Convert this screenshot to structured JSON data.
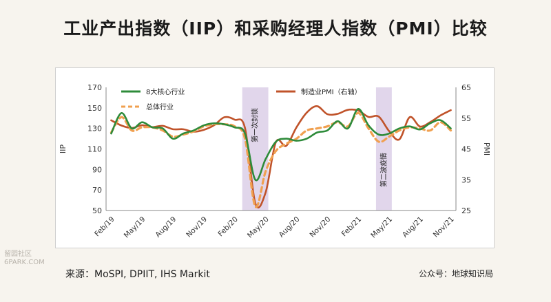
{
  "page": {
    "title": "工业产出指数（IIP）和采购经理人指数（PMI）比较",
    "source": "来源：MoSPI, DPIIT, IHS Markit",
    "account": "公众号：地球知识局",
    "watermark_line1": "留园社区",
    "watermark_line2": "6PARK.COM"
  },
  "colors": {
    "core": "#2e8b3a",
    "overall": "#f0a050",
    "pmi": "#c0532a",
    "band": "#d9cce6"
  },
  "chart_data": {
    "type": "line",
    "x": [
      "Feb/19",
      "Mar/19",
      "Apr/19",
      "May/19",
      "Jun/19",
      "Jul/19",
      "Aug/19",
      "Sep/19",
      "Oct/19",
      "Nov/19",
      "Dec/19",
      "Jan/20",
      "Feb/20",
      "Mar/20",
      "Apr/20",
      "May/20",
      "Jun/20",
      "Jul/20",
      "Aug/20",
      "Sep/20",
      "Oct/20",
      "Nov/20",
      "Dec/20",
      "Jan/21",
      "Feb/21",
      "Mar/21",
      "Apr/21",
      "May/21",
      "Jun/21",
      "Jul/21",
      "Aug/21",
      "Sep/21",
      "Oct/21",
      "Nov/21"
    ],
    "xticks": [
      "Feb/19",
      "May/19",
      "Aug/19",
      "Nov/19",
      "Feb/20",
      "May/20",
      "Aug/20",
      "Nov/20",
      "Feb/21",
      "May/21",
      "Aug/21",
      "Nov/21"
    ],
    "series": [
      {
        "name": "8大核心行业",
        "axis": "left",
        "style": "solid",
        "values": [
          125,
          145,
          130,
          136,
          131,
          130,
          120,
          125,
          128,
          133,
          135,
          134,
          131,
          125,
          80,
          100,
          117,
          120,
          118,
          120,
          126,
          128,
          137,
          130,
          149,
          133,
          124,
          125,
          130,
          132,
          129,
          135,
          138,
          130
        ]
      },
      {
        "name": "总体行业",
        "axis": "left",
        "style": "dashed",
        "values": [
          126,
          141,
          128,
          131,
          131,
          128,
          122,
          124,
          127,
          132,
          134,
          134,
          132,
          120,
          54,
          88,
          108,
          115,
          120,
          128,
          130,
          132,
          136,
          132,
          145,
          130,
          117,
          122,
          128,
          131,
          130,
          128,
          136,
          128
        ]
      },
      {
        "name": "制造业PMI（右轴）",
        "axis": "right",
        "style": "solid",
        "values": [
          54.3,
          52.6,
          51.8,
          52.7,
          52.1,
          52.5,
          51.4,
          51.4,
          50.6,
          51.2,
          52.7,
          55.3,
          54.5,
          51.8,
          27.4,
          30.8,
          47.2,
          46.0,
          52.0,
          56.8,
          58.9,
          56.3,
          56.4,
          57.7,
          57.5,
          55.4,
          55.5,
          50.8,
          48.1,
          55.3,
          52.3,
          53.7,
          55.9,
          57.6
        ]
      }
    ],
    "shaded_periods": [
      {
        "label": "第一次封锁",
        "start": "Mar/20",
        "end": "May/20"
      },
      {
        "label": "第二波疫情",
        "start": "Apr/21",
        "end": "May/21"
      }
    ],
    "ylabel": "IIP",
    "y2label": "PMI",
    "ylim": [
      50,
      170
    ],
    "y2lim": [
      25,
      65
    ],
    "yticks": [
      50,
      70,
      90,
      110,
      130,
      150,
      170
    ],
    "y2ticks": [
      25,
      35,
      45,
      55,
      65
    ],
    "grid": false,
    "legend": "top-inside"
  }
}
